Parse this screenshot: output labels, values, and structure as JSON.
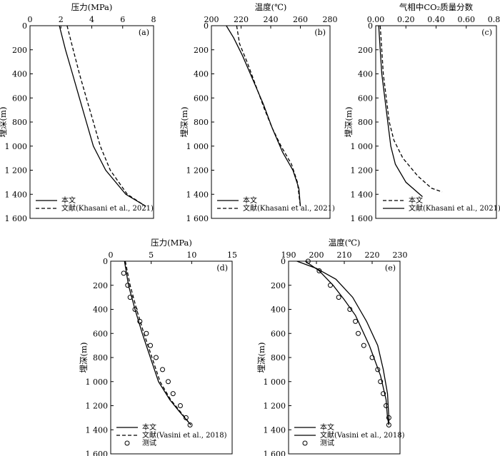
{
  "chart_data": [
    {
      "type": "line",
      "panel_label": "(a)",
      "title": "压力(MPa)",
      "xlabel": "压力(MPa)",
      "ylabel": "埋深(m)",
      "xlim": [
        0,
        8
      ],
      "ylim": [
        1600,
        0
      ],
      "x_ticks": [
        0,
        2,
        4,
        6,
        8
      ],
      "x_tick_labels": [
        "0",
        "2",
        "4",
        "6",
        "8"
      ],
      "y_ticks": [
        0,
        200,
        400,
        600,
        800,
        1000,
        1200,
        1400,
        1600
      ],
      "y_tick_labels": [
        "0",
        "200",
        "400",
        "600",
        "800",
        "1 000",
        "1 200",
        "1 400",
        "1 600"
      ],
      "legend_position": "bottom-left",
      "series": [
        {
          "name": "本文",
          "style": "solid",
          "points": [
            [
              1.9,
              0
            ],
            [
              2.3,
              200
            ],
            [
              2.75,
              400
            ],
            [
              3.2,
              600
            ],
            [
              3.65,
              800
            ],
            [
              4.1,
              1000
            ],
            [
              4.9,
              1200
            ],
            [
              6.2,
              1400
            ],
            [
              7.5,
              1500
            ]
          ]
        },
        {
          "name": "文献(Khasani et al., 2021)",
          "style": "dashed",
          "points": [
            [
              2.4,
              0
            ],
            [
              2.8,
              200
            ],
            [
              3.2,
              400
            ],
            [
              3.65,
              600
            ],
            [
              4.1,
              800
            ],
            [
              4.55,
              1000
            ],
            [
              5.2,
              1200
            ],
            [
              6.3,
              1400
            ],
            [
              7.5,
              1500
            ]
          ]
        }
      ]
    },
    {
      "type": "line",
      "panel_label": "(b)",
      "title": "温度(℃)",
      "xlabel": "温度(℃)",
      "ylabel": "埋深(m)",
      "xlim": [
        200,
        280
      ],
      "ylim": [
        1600,
        0
      ],
      "x_ticks": [
        200,
        220,
        240,
        260,
        280
      ],
      "x_tick_labels": [
        "200",
        "220",
        "240",
        "260",
        "280"
      ],
      "y_ticks": [
        0,
        200,
        400,
        600,
        800,
        1000,
        1200,
        1400,
        1600
      ],
      "y_tick_labels": [
        "0",
        "200",
        "400",
        "600",
        "800",
        "1 000",
        "1 200",
        "1 400",
        "1 600"
      ],
      "legend_position": "bottom-left",
      "series": [
        {
          "name": "本文",
          "style": "solid",
          "points": [
            [
              210,
              0
            ],
            [
              215,
              100
            ],
            [
              221,
              250
            ],
            [
              228,
              450
            ],
            [
              235,
              650
            ],
            [
              241,
              850
            ],
            [
              248,
              1050
            ],
            [
              255,
              1200
            ],
            [
              259,
              1350
            ],
            [
              260,
              1500
            ]
          ]
        },
        {
          "name": "文献(Khasani et al., 2021)",
          "style": "dashed",
          "points": [
            [
              217,
              0
            ],
            [
              219,
              150
            ],
            [
              224,
              300
            ],
            [
              230,
              500
            ],
            [
              236,
              700
            ],
            [
              241,
              850
            ],
            [
              247,
              1000
            ],
            [
              254,
              1150
            ],
            [
              258,
              1300
            ],
            [
              260,
              1500
            ]
          ]
        }
      ]
    },
    {
      "type": "line",
      "panel_label": "(c)",
      "title": "气相中CO₂质量分数",
      "xlabel": "气相中CO₂质量分数",
      "ylabel": "埋深(m)",
      "xlim": [
        0,
        0.8
      ],
      "ylim": [
        1600,
        0
      ],
      "x_ticks": [
        0,
        0.2,
        0.4,
        0.6,
        0.8
      ],
      "x_tick_labels": [
        "0.00",
        "0.20",
        "0.40",
        "0.60",
        "0.80"
      ],
      "y_ticks": [
        0,
        200,
        400,
        600,
        800,
        1000,
        1200,
        1400,
        1600
      ],
      "y_tick_labels": [
        "0",
        "200",
        "400",
        "600",
        "800",
        "1 000",
        "1 200",
        "1 400",
        "1 600"
      ],
      "legend_position": "bottom-right",
      "series": [
        {
          "name": "本文",
          "style": "dashed",
          "points": [
            [
              0.03,
              0
            ],
            [
              0.04,
              200
            ],
            [
              0.05,
              400
            ],
            [
              0.07,
              600
            ],
            [
              0.09,
              800
            ],
            [
              0.12,
              950
            ],
            [
              0.18,
              1100
            ],
            [
              0.28,
              1250
            ],
            [
              0.37,
              1350
            ],
            [
              0.44,
              1380
            ]
          ]
        },
        {
          "name": "文献(Khasani et al., 2021)",
          "style": "solid",
          "points": [
            [
              0.02,
              0
            ],
            [
              0.03,
              200
            ],
            [
              0.04,
              400
            ],
            [
              0.06,
              600
            ],
            [
              0.08,
              800
            ],
            [
              0.1,
              1000
            ],
            [
              0.13,
              1150
            ],
            [
              0.2,
              1300
            ],
            [
              0.31,
              1420
            ]
          ]
        }
      ]
    },
    {
      "type": "line",
      "panel_label": "(d)",
      "title": "压力(MPa)",
      "xlabel": "压力(MPa)",
      "ylabel": "埋深(m)",
      "xlim": [
        0,
        15
      ],
      "ylim": [
        1600,
        0
      ],
      "x_ticks": [
        0,
        5,
        10,
        15
      ],
      "x_tick_labels": [
        "0",
        "5",
        "10",
        "15"
      ],
      "y_ticks": [
        0,
        200,
        400,
        600,
        800,
        1000,
        1200,
        1400,
        1600
      ],
      "y_tick_labels": [
        "0",
        "200",
        "400",
        "600",
        "800",
        "1 000",
        "1 200",
        "1 400",
        "1 600"
      ],
      "legend_position": "bottom-left",
      "series": [
        {
          "name": "本文",
          "style": "solid",
          "points": [
            [
              1.7,
              0
            ],
            [
              2.2,
              200
            ],
            [
              3.0,
              400
            ],
            [
              3.9,
              600
            ],
            [
              4.9,
              800
            ],
            [
              5.9,
              1000
            ],
            [
              7.3,
              1150
            ],
            [
              8.5,
              1250
            ],
            [
              9.9,
              1360
            ]
          ]
        },
        {
          "name": "文献(Vasini et al., 2018)",
          "style": "dashed",
          "points": [
            [
              1.8,
              0
            ],
            [
              2.4,
              200
            ],
            [
              3.2,
              400
            ],
            [
              4.1,
              600
            ],
            [
              5.1,
              800
            ],
            [
              6.1,
              1000
            ],
            [
              7.4,
              1150
            ],
            [
              8.6,
              1250
            ],
            [
              9.9,
              1360
            ]
          ]
        },
        {
          "name": "测试",
          "style": "markers",
          "points": [
            [
              1.6,
              100
            ],
            [
              2.1,
              200
            ],
            [
              2.4,
              300
            ],
            [
              3.0,
              400
            ],
            [
              3.6,
              500
            ],
            [
              4.4,
              600
            ],
            [
              4.9,
              700
            ],
            [
              5.6,
              800
            ],
            [
              6.4,
              900
            ],
            [
              7.1,
              1000
            ],
            [
              7.7,
              1100
            ],
            [
              8.6,
              1200
            ],
            [
              9.3,
              1300
            ],
            [
              9.8,
              1360
            ]
          ]
        }
      ]
    },
    {
      "type": "line",
      "panel_label": "(e)",
      "title": "温度(℃)",
      "xlabel": "温度(℃)",
      "ylabel": "埋深(m)",
      "xlim": [
        190,
        230
      ],
      "ylim": [
        1600,
        0
      ],
      "x_ticks": [
        190,
        200,
        210,
        220,
        230
      ],
      "x_tick_labels": [
        "190",
        "200",
        "210",
        "220",
        "230"
      ],
      "y_ticks": [
        0,
        200,
        400,
        600,
        800,
        1000,
        1200,
        1400,
        1600
      ],
      "y_tick_labels": [
        "0",
        "200",
        "400",
        "600",
        "800",
        "1 000",
        "1 200",
        "1 400",
        "1 600"
      ],
      "legend_position": "bottom-left",
      "series": [
        {
          "name": "本文",
          "style": "solid",
          "points": [
            [
              193,
              0
            ],
            [
              200,
              60
            ],
            [
              207,
              150
            ],
            [
              213,
              300
            ],
            [
              218,
              500
            ],
            [
              222,
              700
            ],
            [
              224,
              900
            ],
            [
              225.5,
              1100
            ],
            [
              226,
              1300
            ],
            [
              226,
              1360
            ]
          ]
        },
        {
          "name": "文献(Vasini et al., 2018)",
          "style": "solid",
          "points": [
            [
              196,
              0
            ],
            [
              201,
              80
            ],
            [
              206,
              200
            ],
            [
              210,
              320
            ],
            [
              214,
              450
            ],
            [
              219,
              700
            ],
            [
              223,
              950
            ],
            [
              225,
              1150
            ],
            [
              225.5,
              1300
            ],
            [
              226,
              1360
            ]
          ]
        },
        {
          "name": "测试",
          "style": "markers",
          "points": [
            [
              197,
              0
            ],
            [
              201,
              80
            ],
            [
              205,
              200
            ],
            [
              208,
              300
            ],
            [
              212,
              400
            ],
            [
              214,
              500
            ],
            [
              215,
              600
            ],
            [
              217,
              700
            ],
            [
              220,
              800
            ],
            [
              222,
              900
            ],
            [
              223,
              1000
            ],
            [
              224,
              1100
            ],
            [
              225,
              1200
            ],
            [
              226,
              1300
            ],
            [
              226,
              1360
            ]
          ]
        }
      ]
    }
  ]
}
